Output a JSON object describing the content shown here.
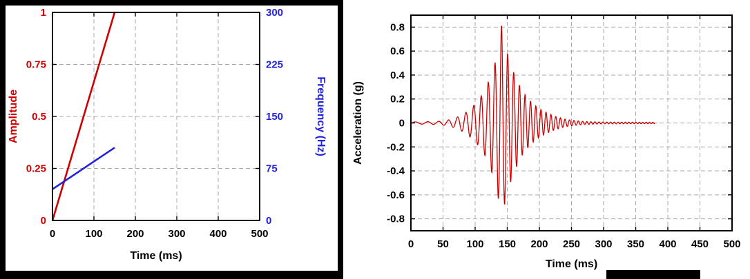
{
  "page": {
    "background": "#ffffff"
  },
  "decor": {
    "left_frame_color": "#000000",
    "bottom_right_bar_color": "#000000"
  },
  "chart_data": [
    {
      "id": "ramp-chart",
      "type": "line",
      "title": "",
      "xlabel": "Time (ms)",
      "ylabel": "Amplitude",
      "ylabel_right": "Frequency (Hz)",
      "xlim": [
        0,
        500
      ],
      "x_ticks": [
        0,
        100,
        200,
        300,
        400,
        500
      ],
      "ylim_left": [
        0,
        1
      ],
      "y_ticks_left": [
        "0",
        "0.25",
        "0.5",
        "0.75",
        "1"
      ],
      "ylim_right": [
        0,
        300
      ],
      "y_ticks_right": [
        "0",
        "75",
        "150",
        "225",
        "300"
      ],
      "grid": true,
      "legend": "none",
      "colors": {
        "amplitude": "#cc0000",
        "frequency": "#2222dd",
        "grid": "#aaaaaa",
        "axis": "#000000"
      },
      "series": [
        {
          "name": "Amplitude",
          "axis": "left",
          "points": [
            [
              0,
              0
            ],
            [
              150,
              1
            ]
          ]
        },
        {
          "name": "Frequency (Hz)",
          "axis": "right",
          "points": [
            [
              0,
              45
            ],
            [
              150,
              105
            ]
          ]
        }
      ]
    },
    {
      "id": "acceleration-chart",
      "type": "line",
      "title": "",
      "xlabel": "Time (ms)",
      "ylabel": "Acceleration (g)",
      "xlim": [
        0,
        500
      ],
      "x_ticks": [
        0,
        50,
        100,
        150,
        200,
        250,
        300,
        350,
        400,
        450,
        500
      ],
      "ylim": [
        -0.9,
        0.9
      ],
      "y_ticks": [
        "-0.8",
        "-0.6",
        "-0.4",
        "-0.2",
        "0",
        "0.2",
        "0.4",
        "0.6",
        "0.8"
      ],
      "grid": true,
      "legend": "none",
      "colors": {
        "signal": "#cc0000",
        "grid": "#aaaaaa",
        "axis": "#000000"
      },
      "signal": {
        "description": "chirp burst; frequency ramps 45-105 Hz (matches left chart), peak +0.82 g near t=141 ms, min about -0.7 g, trace ends near t=380 ms",
        "t_end": 380,
        "dt": 0.4,
        "f0_hz": 45,
        "f_slope_hz_per_ms": 0.4,
        "phase0_cycles": -0.071,
        "peak_g": 0.82,
        "envelope": [
          [
            0,
            0.008
          ],
          [
            40,
            0.012
          ],
          [
            55,
            0.02
          ],
          [
            65,
            0.035
          ],
          [
            75,
            0.055
          ],
          [
            85,
            0.085
          ],
          [
            95,
            0.13
          ],
          [
            105,
            0.19
          ],
          [
            115,
            0.27
          ],
          [
            125,
            0.4
          ],
          [
            132,
            0.52
          ],
          [
            137,
            0.66
          ],
          [
            141,
            0.82
          ],
          [
            145,
            0.7
          ],
          [
            152,
            0.55
          ],
          [
            158,
            0.45
          ],
          [
            165,
            0.36
          ],
          [
            172,
            0.28
          ],
          [
            180,
            0.22
          ],
          [
            190,
            0.16
          ],
          [
            200,
            0.12
          ],
          [
            212,
            0.085
          ],
          [
            225,
            0.055
          ],
          [
            240,
            0.032
          ],
          [
            255,
            0.02
          ],
          [
            270,
            0.012
          ],
          [
            300,
            0.007
          ],
          [
            380,
            0.006
          ]
        ]
      }
    }
  ]
}
